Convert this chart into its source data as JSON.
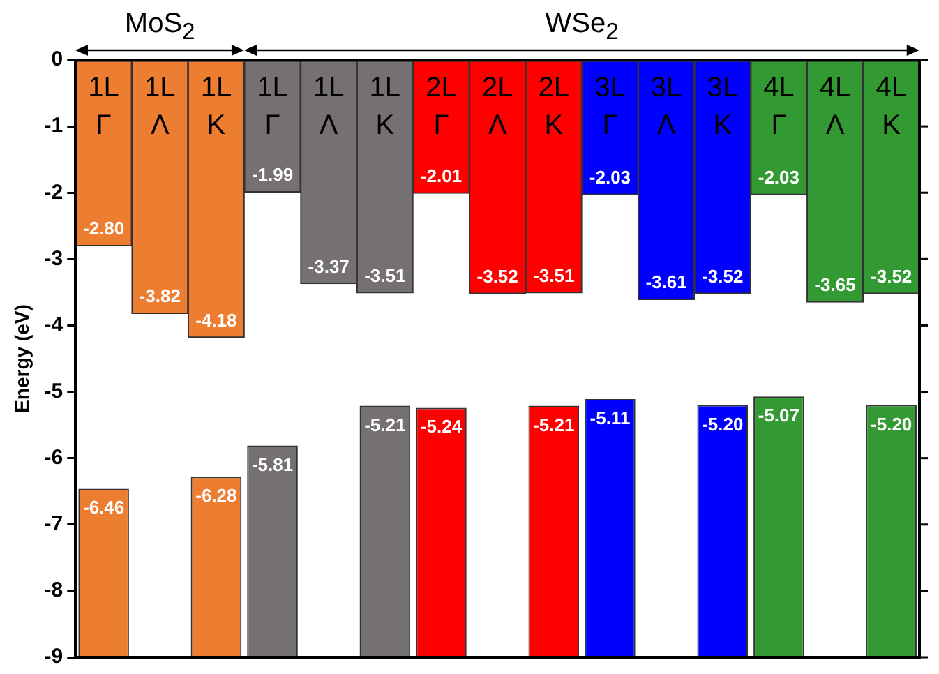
{
  "chart_data": {
    "type": "bar",
    "ylabel": "Energy (eV)",
    "annotations": [
      "MoS$_{2}$",
      "WSe$_{2}$"
    ],
    "categories": [
      "1L Γ",
      "1L Λ",
      "1L K",
      "1L Γ",
      "1L Λ",
      "1L K",
      "2L Γ",
      "2L Λ",
      "2L K",
      "3L Γ",
      "3L Λ",
      "3L K",
      "4L Γ",
      "4L Λ",
      "4L K"
    ],
    "series": [
      {
        "values": [
          -2.8,
          -3.82,
          -4.18,
          -1.99,
          -3.37,
          -3.51,
          -2.01,
          -3.52,
          -3.51,
          -2.03,
          -3.61,
          -3.52,
          -2.03,
          -3.65,
          -3.52
        ],
        "value_labels": [
          "-2.80",
          "-3.82",
          "-4.18",
          "-1.99",
          "-3.37",
          "-3.51",
          "-2.01",
          "-3.52",
          "-3.51",
          "-2.03",
          "-3.61",
          "-3.52",
          "-2.03",
          "-3.65",
          "-3.52"
        ],
        "colors": [
          "#ed7d31",
          "#ed7d31",
          "#ed7d31",
          "#767171",
          "#767171",
          "#767171",
          "#ff0000",
          "#ff0000",
          "#ff0000",
          "#0000ff",
          "#0000ff",
          "#0000ff",
          "#339933",
          "#339933",
          "#339933"
        ]
      },
      {
        "base": [
          -9,
          null,
          -9,
          -9,
          null,
          -9,
          -9,
          null,
          -9,
          -9,
          null,
          -9,
          -9,
          null,
          -9
        ],
        "values": [
          2.54,
          null,
          2.72,
          3.19,
          null,
          3.79,
          3.76,
          null,
          3.79,
          3.89,
          null,
          3.8,
          3.93,
          null,
          3.8
        ],
        "value_labels": [
          "-6.46",
          null,
          "-6.28",
          "-5.81",
          null,
          "-5.21",
          "-5.24",
          null,
          "-5.21",
          "-5.11",
          null,
          "-5.20",
          "-5.07",
          null,
          "-5.20"
        ],
        "colors": [
          "#ed7d31",
          null,
          "#ed7d31",
          "#767171",
          null,
          "#767171",
          "#ff0000",
          null,
          "#ff0000",
          "#0000ff",
          null,
          "#0000ff",
          "#339933",
          null,
          "#339933"
        ]
      }
    ],
    "ylim": [
      -9,
      0
    ],
    "yticks": [
      -9,
      -8,
      -7,
      -6,
      -5,
      -4,
      -3,
      -2,
      -1,
      0
    ],
    "grid": false,
    "legend": false
  }
}
